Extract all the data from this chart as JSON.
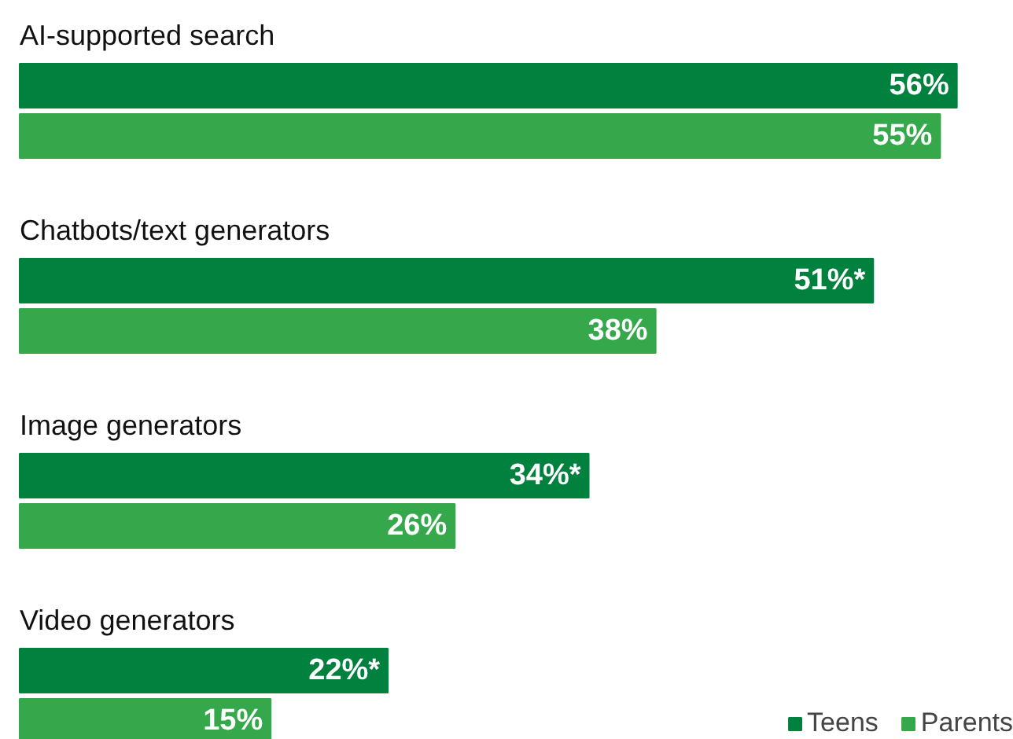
{
  "chart_data": {
    "type": "bar",
    "orientation": "horizontal",
    "categories": [
      "AI-supported search",
      "Chatbots/text generators",
      "Image generators",
      "Video generators"
    ],
    "series": [
      {
        "name": "Teens",
        "color": "#00813e",
        "values": [
          56,
          51,
          34,
          22
        ],
        "value_labels": [
          "56%",
          "51%*",
          "34%*",
          "22%*"
        ]
      },
      {
        "name": "Parents",
        "color": "#34a84a",
        "values": [
          55,
          38,
          26,
          15
        ],
        "value_labels": [
          "55%",
          "38%",
          "26%",
          "15%"
        ]
      }
    ],
    "legend": "bottom right",
    "grid": false
  }
}
